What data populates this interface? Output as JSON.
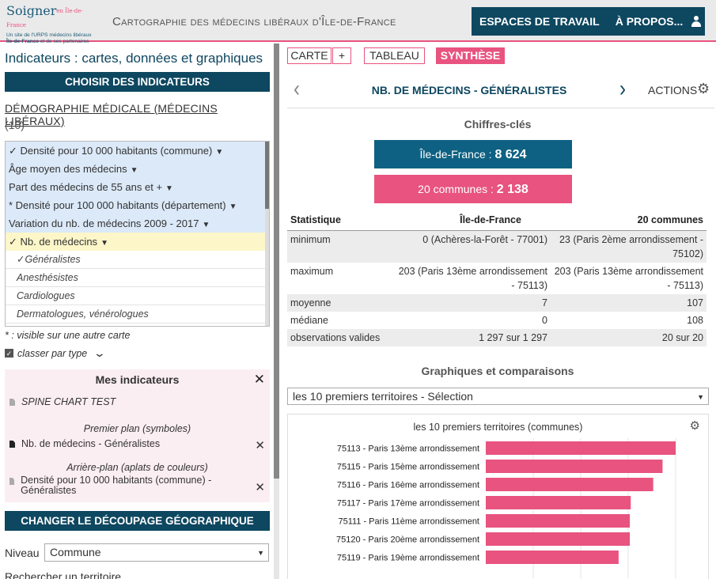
{
  "header": {
    "logo_main": "Soigner",
    "logo_sup": "en Île-de-France",
    "logo_sub1": "Un site de l'URPS médecins libéraux",
    "logo_sub2": "Île-de-France",
    "logo_sub3": "et de ses partenaires",
    "app_title": "Cartographie des médecins libéraux d'Île-de-France",
    "nav": [
      "ESPACES DE TRAVAIL",
      "À PROPOS..."
    ],
    "user_icon": "user-icon"
  },
  "left": {
    "title": "Indicateurs : cartes, données et graphiques",
    "choose_btn": "CHOISIR DES INDICATEURS",
    "theme": "DÉMOGRAPHIE MÉDICALE (MÉDECINS LIBÉRAUX)",
    "theme_count": "(10)",
    "indicators": [
      {
        "label": "✓ Densité pour 10 000 habitants (commune)",
        "arrow": "▼",
        "selected": false
      },
      {
        "label": "Âge moyen des médecins",
        "arrow": "▼",
        "selected": false
      },
      {
        "label": "Part des médecins de 55 ans et +",
        "arrow": "▼",
        "selected": false
      },
      {
        "label": "* Densité pour 100 000 habitants (département)",
        "arrow": "▼",
        "selected": false
      },
      {
        "label": "Variation du nb. de médecins 2009 - 2017",
        "arrow": "▼",
        "selected": false
      },
      {
        "label": "✓ Nb. de médecins",
        "arrow": "▼",
        "selected": true
      }
    ],
    "subindicators": [
      "✓Généralistes",
      "Anesthésistes",
      "Cardiologues",
      "Dermatologues, vénérologues"
    ],
    "visible_note": "* : visible sur une autre carte",
    "classify_label": "classer par type",
    "mes": {
      "title": "Mes indicateurs",
      "spine": "SPINE CHART TEST",
      "premier_label": "Premier plan (symboles)",
      "premier_item": "Nb. de médecins - Généralistes",
      "arriere_label": "Arrière-plan (aplats de couleurs)",
      "arriere_item": "Densité pour 10 000 habitants (commune) - Généralistes"
    },
    "geo_btn": "CHANGER LE DÉCOUPAGE GÉOGRAPHIQUE",
    "niveau_label": "Niveau",
    "niveau_value": "Commune",
    "search_label": "Rechercher un territoire"
  },
  "right": {
    "tabs": {
      "carte": "CARTE",
      "plus": "+",
      "tableau": "TABLEAU",
      "synthese": "SYNTHÈSE"
    },
    "indicator_title": "NB. DE MÉDECINS - GÉNÉRALISTES",
    "actions": "ACTIONS",
    "keyfigures_title": "Chiffres-clés",
    "idf_label": "Île-de-France : ",
    "idf_value": "8 624",
    "com_label": "20 communes : ",
    "com_value": "2 138",
    "stats": {
      "headers": [
        "Statistique",
        "Île-de-France",
        "20 communes"
      ],
      "rows": [
        [
          "minimum",
          "0 (Achères-la-Forêt - 77001)",
          "23 (Paris 2ème arrondissement - 75102)"
        ],
        [
          "maximum",
          "203 (Paris 13ème arrondissement - 75113)",
          "203 (Paris 13ème arrondissement - 75113)"
        ],
        [
          "moyenne",
          "7",
          "107"
        ],
        [
          "médiane",
          "0",
          "108"
        ],
        [
          "observations valides",
          "1 297 sur 1 297",
          "20 sur 20"
        ]
      ]
    },
    "graphs_title": "Graphiques et comparaisons",
    "chart_select": "les 10 premiers territoires - Sélection"
  },
  "chart_data": {
    "type": "bar",
    "title": "les 10 premiers territoires (communes)",
    "orientation": "horizontal",
    "categories": [
      "75113 - Paris 13ème arrondissement",
      "75115 - Paris 15ème arrondissement",
      "75116 - Paris 16ème arrondissement",
      "75117 - Paris 17ème arrondissement",
      "75111 - Paris 11ème arrondissement",
      "75120 - Paris 20ème arrondissement",
      "75119 - Paris 19ème arrondissement"
    ],
    "values": [
      203,
      189,
      179,
      155,
      154,
      154,
      142
    ],
    "xlim": [
      0,
      203
    ],
    "color": "#e8537f"
  }
}
